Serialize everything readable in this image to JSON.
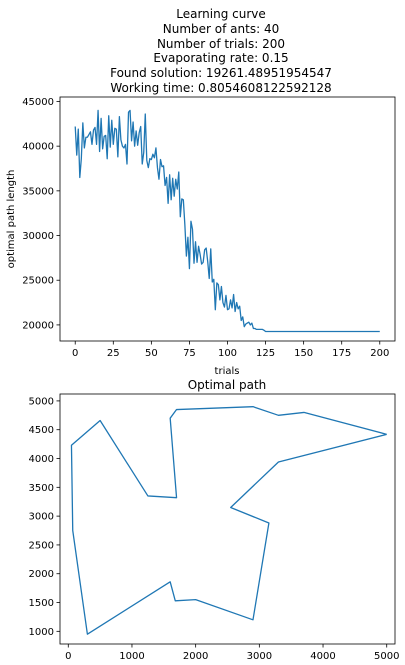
{
  "chart_data": [
    {
      "type": "line",
      "title_lines": [
        "Learning curve",
        "Number of ants: 40",
        "Number of trials: 200",
        "Evaporating rate: 0.15",
        "Found solution: 19261.48951954547",
        "Working time: 0.8054608122592128"
      ],
      "xlabel": "trials",
      "ylabel": "optimal path length",
      "xlim": [
        -10,
        210
      ],
      "ylim": [
        18200,
        45500
      ],
      "xticks": [
        0,
        25,
        50,
        75,
        100,
        125,
        150,
        175,
        200
      ],
      "yticks": [
        20000,
        25000,
        30000,
        35000,
        40000,
        45000
      ],
      "line_color": "#1f77b4",
      "grid": false,
      "series": [
        {
          "x": [
            0,
            1,
            2,
            3,
            4,
            5,
            6,
            7,
            8,
            9,
            10,
            11,
            12,
            13,
            14,
            15,
            16,
            17,
            18,
            19,
            20,
            21,
            22,
            23,
            24,
            25,
            26,
            27,
            28,
            29,
            30,
            31,
            32,
            33,
            34,
            35,
            36,
            37,
            38,
            39,
            40,
            41,
            42,
            43,
            44,
            45,
            46,
            47,
            48,
            49,
            50,
            51,
            52,
            53,
            54,
            55,
            56,
            57,
            58,
            59,
            60,
            61,
            62,
            63,
            64,
            65,
            66,
            67,
            68,
            69,
            70,
            71,
            72,
            73,
            74,
            75,
            76,
            77,
            78,
            79,
            80,
            81,
            82,
            83,
            84,
            85,
            86,
            87,
            88,
            89,
            90,
            91,
            92,
            93,
            94,
            95,
            96,
            97,
            98,
            99,
            100,
            101,
            102,
            103,
            104,
            105,
            106,
            107,
            108,
            109,
            110,
            111,
            112,
            113,
            114,
            115,
            116,
            117,
            118,
            119,
            120,
            121,
            122,
            123,
            124,
            125,
            126,
            127,
            128,
            200
          ],
          "y": [
            42200,
            39000,
            41900,
            36500,
            38600,
            42600,
            39800,
            41000,
            41000,
            41300,
            41600,
            40200,
            41800,
            42100,
            40200,
            44000,
            39400,
            43100,
            39700,
            41100,
            41200,
            38600,
            43400,
            39900,
            42900,
            40200,
            42000,
            41900,
            38800,
            43300,
            40700,
            40000,
            39800,
            40200,
            38000,
            43800,
            44000,
            40600,
            42700,
            40000,
            41700,
            40100,
            41500,
            42200,
            38000,
            39300,
            43600,
            38400,
            37600,
            38600,
            38500,
            39100,
            38700,
            39800,
            37600,
            36300,
            38500,
            37700,
            37800,
            35600,
            36500,
            33600,
            36800,
            34000,
            36400,
            34400,
            36300,
            35200,
            37100,
            32100,
            34100,
            34000,
            31200,
            27700,
            29800,
            26300,
            31600,
            30700,
            26900,
            29300,
            27000,
            28800,
            27900,
            26800,
            27000,
            28400,
            28600,
            27100,
            25200,
            28500,
            24800,
            25100,
            21700,
            24700,
            24500,
            22800,
            24300,
            22500,
            22000,
            23300,
            21700,
            21800,
            22800,
            21900,
            23400,
            21500,
            22500,
            21800,
            22100,
            20500,
            20900,
            19800,
            20100,
            20200,
            20300,
            20000,
            20200,
            19600,
            19600,
            19500,
            19500,
            19500,
            19500,
            19500,
            19400,
            19261,
            19261,
            19261,
            19261,
            19261
          ]
        }
      ]
    },
    {
      "type": "line",
      "title": "Optimal path",
      "xlim": [
        -130,
        5130
      ],
      "ylim": [
        780,
        5120
      ],
      "xticks": [
        0,
        1000,
        2000,
        3000,
        4000,
        5000
      ],
      "yticks": [
        1000,
        1500,
        2000,
        2500,
        3000,
        3500,
        4000,
        4500,
        5000
      ],
      "line_color": "#1f77b4",
      "grid": false,
      "series": [
        {
          "x": [
            5000,
            3700,
            3300,
            2900,
            1700,
            1600,
            1700,
            1250,
            500,
            50,
            70,
            300,
            1600,
            1680,
            2000,
            2900,
            3150,
            2550,
            3300,
            5000
          ],
          "y": [
            4420,
            4800,
            4750,
            4900,
            4850,
            4700,
            3320,
            3350,
            4660,
            4230,
            2750,
            950,
            1860,
            1530,
            1550,
            1200,
            2880,
            3150,
            3940,
            4420
          ]
        }
      ]
    }
  ]
}
